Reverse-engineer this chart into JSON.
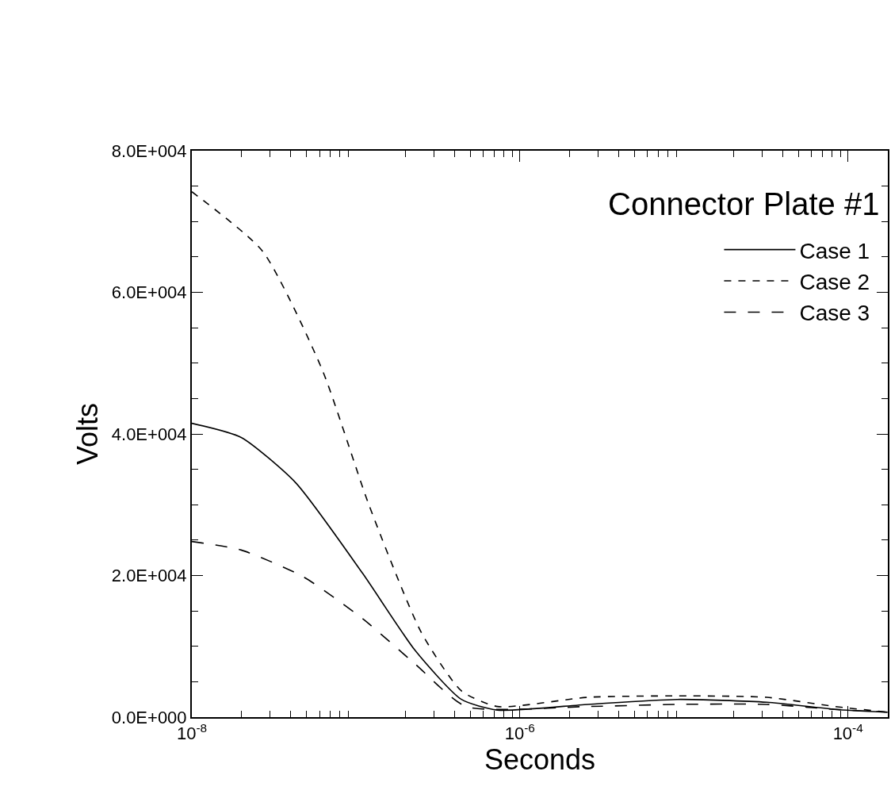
{
  "chart_data": {
    "type": "line",
    "title": "Connector Plate #1",
    "xlabel": "Seconds",
    "ylabel": "Volts",
    "log": "x",
    "legend": "top right",
    "marker": "none",
    "xlim": [
      1e-08,
      0.000175
    ],
    "xticks": [
      {
        "value": 1e-08,
        "label": "10$^{-8}$"
      },
      {
        "value": 1e-06,
        "label": "10$^{-6}$"
      },
      {
        "value": 0.0001,
        "label": "10$^{-4}$"
      }
    ],
    "ylim": [
      0,
      80000
    ],
    "yticks": [
      {
        "value": 0,
        "label": "0.0E+000"
      },
      {
        "value": 20000,
        "label": "2.0E+004"
      },
      {
        "value": 40000,
        "label": "4.0E+004"
      },
      {
        "value": 60000,
        "label": "6.0E+004"
      },
      {
        "value": 80000,
        "label": "8.0E+004"
      }
    ],
    "series": [
      {
        "name": "Case 1",
        "color": "#000000",
        "line_style": "solid",
        "x": [
          1e-08,
          2e-08,
          4.3e-08,
          1.1e-07,
          2.3e-07,
          4.4e-07,
          7.3e-07,
          2.6e-06,
          9.1e-06,
          3.2e-05,
          8.3e-05,
          0.000174
        ],
        "values": [
          41500,
          39500,
          33100,
          20300,
          9400,
          2500,
          1000,
          1800,
          2500,
          2100,
          1100,
          700
        ]
      },
      {
        "name": "Case 2",
        "color": "#000000",
        "line_style": "dashed",
        "x": [
          1e-08,
          2.7e-08,
          6.2e-08,
          1.2e-07,
          2.5e-07,
          4.4e-07,
          7.3e-07,
          2.6e-06,
          9.1e-06,
          3.2e-05,
          8.3e-05,
          0.000174
        ],
        "values": [
          74200,
          65800,
          49200,
          30000,
          12000,
          3700,
          1500,
          2800,
          3000,
          2800,
          1500,
          700
        ]
      },
      {
        "name": "Case 3",
        "color": "#000000",
        "line_style": "long dashed",
        "x": [
          1e-08,
          2e-08,
          4.8e-08,
          1.1e-07,
          2.3e-07,
          4.7e-07,
          2.6e-06,
          9.1e-06,
          3.2e-05,
          8.3e-05,
          0.000174
        ],
        "values": [
          24800,
          23600,
          19800,
          13900,
          7500,
          1500,
          1500,
          1800,
          1800,
          1100,
          700
        ]
      }
    ]
  }
}
